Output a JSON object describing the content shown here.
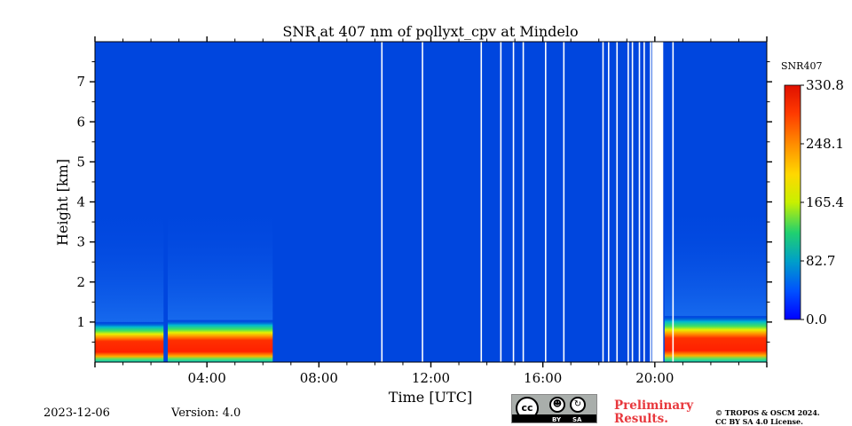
{
  "chart_data": {
    "type": "heatmap",
    "title": "SNR at 407 nm of pollyxt_cpv at Mindelo",
    "xlabel": "Time [UTC]",
    "ylabel": "Height [km]",
    "xlim_hours": [
      0,
      24
    ],
    "ylim_km": [
      0,
      8
    ],
    "x_ticks": [
      {
        "hour": 4,
        "label": "04:00"
      },
      {
        "hour": 8,
        "label": "08:00"
      },
      {
        "hour": 12,
        "label": "12:00"
      },
      {
        "hour": 16,
        "label": "16:00"
      },
      {
        "hour": 20,
        "label": "20:00"
      }
    ],
    "y_ticks": [
      1,
      2,
      3,
      4,
      5,
      6,
      7
    ],
    "colorbar": {
      "title": "SNR407",
      "min": 0.0,
      "max": 330.8,
      "ticks": [
        "0.0",
        "82.7",
        "165.4",
        "248.1",
        "330.8"
      ],
      "colormap": "jet"
    },
    "profiles": [
      {
        "start_hour": 0.0,
        "end_hour": 2.45,
        "boundary_layer_top_km": 1.0,
        "max_snr_band_km": [
          0.15,
          0.75
        ],
        "max_snr": 330.8
      },
      {
        "start_hour": 2.6,
        "end_hour": 6.35,
        "boundary_layer_top_km": 1.05,
        "max_snr_band_km": [
          0.15,
          0.75
        ],
        "max_snr": 330.8
      },
      {
        "start_hour": 20.35,
        "end_hour": 24.0,
        "boundary_layer_top_km": 1.15,
        "max_snr_band_km": [
          0.15,
          0.75
        ],
        "max_snr": 330.8
      }
    ],
    "background_snr": 10,
    "missing_data_hours": [
      10.25,
      11.7,
      13.8,
      14.5,
      14.95,
      15.3,
      16.1,
      16.75,
      18.15,
      18.35,
      18.65,
      19.05,
      19.2,
      19.45,
      19.62,
      19.85,
      20.65
    ],
    "missing_gap_hours": [
      19.9,
      20.3
    ]
  },
  "footer": {
    "date": "2023-12-06",
    "version": "Version: 4.0",
    "preliminary": [
      "Preliminary",
      "Results."
    ],
    "copyright": [
      "© TROPOS & OSCM 2024.",
      "CC BY SA 4.0 License."
    ],
    "license_badge": {
      "cc": "cc",
      "by": "BY",
      "sa": "SA"
    }
  }
}
